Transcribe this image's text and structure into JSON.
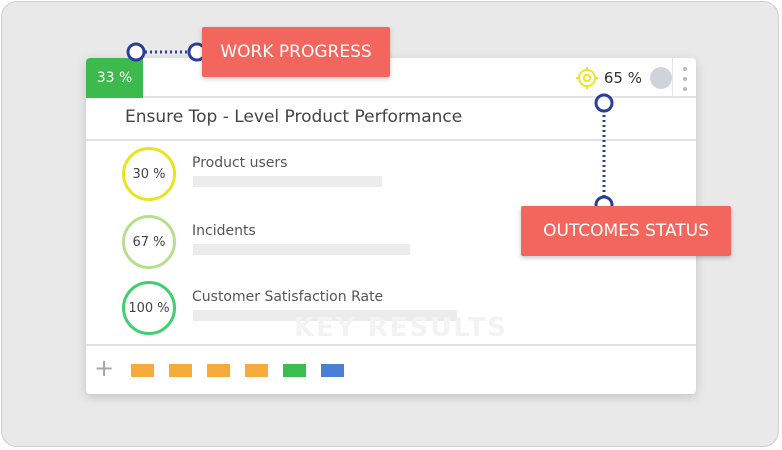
{
  "card": {
    "work_progress_badge": "33 %",
    "outcome_value": "65 %",
    "title": "Ensure Top - Level Product Performance"
  },
  "key_results": [
    {
      "percent": "30 %",
      "label": "Product users",
      "color": "#ebe31e"
    },
    {
      "percent": "67 %",
      "label": "Incidents",
      "color": "#b8df8d"
    },
    {
      "percent": "100 %",
      "label": "Customer Satisfaction Rate",
      "color": "#3ecf6e"
    }
  ],
  "watermark": "KEY RESULTS",
  "footer": {
    "add_icon": "plus-icon",
    "tag_colors": [
      "#f5ac3b",
      "#f5ac3b",
      "#f5ac3b",
      "#f5ac3b",
      "#3bbd50",
      "#4b7fd6"
    ]
  },
  "callouts": {
    "work_progress": "WORK PROGRESS",
    "outcomes_status": "OUTCOMES STATUS"
  },
  "colors": {
    "progress_green": "#3dba4e",
    "callout_red": "#f2665e",
    "connector_blue": "#2a3d9a",
    "target_yellow": "#efe327"
  }
}
